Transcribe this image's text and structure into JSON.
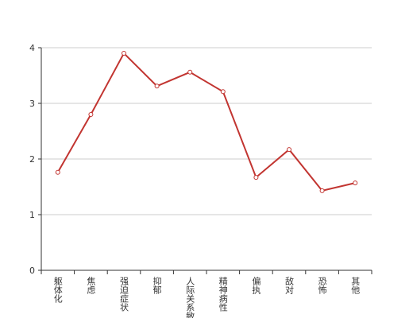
{
  "chart_data": {
    "type": "line",
    "categories": [
      "躯体化",
      "焦虑",
      "强迫症状",
      "抑郁",
      "人际关系敏感",
      "精神病性",
      "偏执",
      "敌对",
      "恐怖",
      "其他"
    ],
    "values": [
      1.76,
      2.8,
      3.9,
      3.31,
      3.56,
      3.21,
      1.67,
      2.17,
      1.43,
      1.57
    ],
    "color": "#c23531",
    "ylim": [
      0,
      4
    ],
    "yticks": [
      0,
      1,
      2,
      3,
      4
    ],
    "grid": true
  }
}
